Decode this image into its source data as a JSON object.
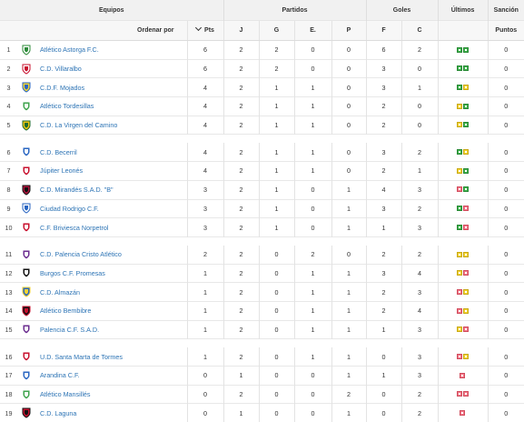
{
  "header": {
    "equipos": "Equipos",
    "partidos": "Partidos",
    "goles": "Goles",
    "ultimos": "Últimos",
    "sancion": "Sanción",
    "ordenar_por": "Ordenar por",
    "pts": "Pts",
    "j": "J",
    "g": "G",
    "e": "E.",
    "p": "P",
    "f": "F",
    "c": "C",
    "puntos": "Puntos"
  },
  "rows": [
    {
      "pos": "1",
      "team": "Atlético Astorga F.C.",
      "pts": "6",
      "j": "2",
      "g": "2",
      "e": "0",
      "p": "0",
      "f": "6",
      "c": "2",
      "form": [
        "W",
        "W"
      ],
      "sancion": "0",
      "logo": "crest-astorga-icon",
      "logo_colors": [
        "#ffffff",
        "#2e8b3a"
      ]
    },
    {
      "pos": "2",
      "team": "C.D. Villaralbo",
      "pts": "6",
      "j": "2",
      "g": "2",
      "e": "0",
      "p": "0",
      "f": "3",
      "c": "0",
      "form": [
        "W",
        "W"
      ],
      "sancion": "0",
      "logo": "crest-villaralbo-icon",
      "logo_colors": [
        "#ffffff",
        "#c8102e"
      ]
    },
    {
      "pos": "3",
      "team": "C.D.F. Mojados",
      "pts": "4",
      "j": "2",
      "g": "1",
      "e": "1",
      "p": "0",
      "f": "3",
      "c": "1",
      "form": [
        "W",
        "D"
      ],
      "sancion": "0",
      "logo": "crest-mojados-icon",
      "logo_colors": [
        "#f4d431",
        "#2a66c2"
      ]
    },
    {
      "pos": "4",
      "team": "Atlético Tordesillas",
      "pts": "4",
      "j": "2",
      "g": "1",
      "e": "1",
      "p": "0",
      "f": "2",
      "c": "0",
      "form": [
        "D",
        "W"
      ],
      "sancion": "0",
      "logo": "crest-tordesillas-icon",
      "logo_colors": [
        "#3fa34d",
        "#ffffff"
      ]
    },
    {
      "pos": "5",
      "team": "C.D. La Virgen del Camino",
      "pts": "4",
      "j": "2",
      "g": "1",
      "e": "1",
      "p": "0",
      "f": "2",
      "c": "0",
      "form": [
        "D",
        "W"
      ],
      "sancion": "0",
      "logo": "crest-virgen-camino-icon",
      "logo_colors": [
        "#f1c40f",
        "#1e6b2e"
      ]
    },
    {
      "pos": "6",
      "team": "C.D. Becerril",
      "pts": "4",
      "j": "2",
      "g": "1",
      "e": "1",
      "p": "0",
      "f": "3",
      "c": "2",
      "form": [
        "W",
        "D"
      ],
      "sancion": "0",
      "logo": "crest-becerril-icon",
      "logo_colors": [
        "#2a66c2",
        "#ffffff"
      ]
    },
    {
      "pos": "7",
      "team": "Júpiter Leonés",
      "pts": "4",
      "j": "2",
      "g": "1",
      "e": "1",
      "p": "0",
      "f": "2",
      "c": "1",
      "form": [
        "D",
        "W"
      ],
      "sancion": "0",
      "logo": "crest-jupiter-icon",
      "logo_colors": [
        "#c8102e",
        "#ffffff"
      ]
    },
    {
      "pos": "8",
      "team": "C.D. Mirandés S.A.D. \"B\"",
      "pts": "3",
      "j": "2",
      "g": "1",
      "e": "0",
      "p": "1",
      "f": "4",
      "c": "3",
      "form": [
        "L",
        "W"
      ],
      "sancion": "0",
      "logo": "crest-mirandes-icon",
      "logo_colors": [
        "#b0123b",
        "#111111"
      ]
    },
    {
      "pos": "9",
      "team": "Ciudad Rodrigo C.F.",
      "pts": "3",
      "j": "2",
      "g": "1",
      "e": "0",
      "p": "1",
      "f": "3",
      "c": "2",
      "form": [
        "W",
        "L"
      ],
      "sancion": "0",
      "logo": "crest-ciudad-rodrigo-icon",
      "logo_colors": [
        "#ffffff",
        "#2a66c2"
      ]
    },
    {
      "pos": "10",
      "team": "C.F. Briviesca Norpetrol",
      "pts": "3",
      "j": "2",
      "g": "1",
      "e": "0",
      "p": "1",
      "f": "1",
      "c": "3",
      "form": [
        "W",
        "L"
      ],
      "sancion": "0",
      "logo": "crest-briviesca-icon",
      "logo_colors": [
        "#c8102e",
        "#ffffff"
      ]
    },
    {
      "pos": "11",
      "team": "C.D. Palencia Cristo Atlético",
      "pts": "2",
      "j": "2",
      "g": "0",
      "e": "2",
      "p": "0",
      "f": "2",
      "c": "2",
      "form": [
        "D",
        "D"
      ],
      "sancion": "0",
      "logo": "crest-palencia-cristo-icon",
      "logo_colors": [
        "#6b2d8f",
        "#ffffff"
      ]
    },
    {
      "pos": "12",
      "team": "Burgos C.F. Promesas",
      "pts": "1",
      "j": "2",
      "g": "0",
      "e": "1",
      "p": "1",
      "f": "3",
      "c": "4",
      "form": [
        "D",
        "L"
      ],
      "sancion": "0",
      "logo": "crest-burgos-icon",
      "logo_colors": [
        "#111111",
        "#ffffff"
      ]
    },
    {
      "pos": "13",
      "team": "C.D. Almazán",
      "pts": "1",
      "j": "2",
      "g": "0",
      "e": "1",
      "p": "1",
      "f": "2",
      "c": "3",
      "form": [
        "L",
        "D"
      ],
      "sancion": "0",
      "logo": "crest-almazan-icon",
      "logo_colors": [
        "#2a66c2",
        "#f4d431"
      ]
    },
    {
      "pos": "14",
      "team": "Atlético Bembibre",
      "pts": "1",
      "j": "2",
      "g": "0",
      "e": "1",
      "p": "1",
      "f": "2",
      "c": "4",
      "form": [
        "L",
        "D"
      ],
      "sancion": "0",
      "logo": "crest-bembibre-icon",
      "logo_colors": [
        "#111111",
        "#c8102e"
      ]
    },
    {
      "pos": "15",
      "team": "Palencia C.F. S.A.D.",
      "pts": "1",
      "j": "2",
      "g": "0",
      "e": "1",
      "p": "1",
      "f": "1",
      "c": "3",
      "form": [
        "D",
        "L"
      ],
      "sancion": "0",
      "logo": "crest-palencia-cf-icon",
      "logo_colors": [
        "#6b2d8f",
        "#ffffff"
      ]
    },
    {
      "pos": "16",
      "team": "U.D. Santa Marta de Tormes",
      "pts": "1",
      "j": "2",
      "g": "0",
      "e": "1",
      "p": "1",
      "f": "0",
      "c": "3",
      "form": [
        "L",
        "D"
      ],
      "sancion": "0",
      "logo": "crest-santa-marta-icon",
      "logo_colors": [
        "#c8102e",
        "#ffffff"
      ]
    },
    {
      "pos": "17",
      "team": "Arandina C.F.",
      "pts": "0",
      "j": "1",
      "g": "0",
      "e": "0",
      "p": "1",
      "f": "1",
      "c": "3",
      "form": [
        "L"
      ],
      "sancion": "0",
      "logo": "crest-arandina-icon",
      "logo_colors": [
        "#2a66c2",
        "#ffffff"
      ]
    },
    {
      "pos": "18",
      "team": "Atlético Mansillés",
      "pts": "0",
      "j": "2",
      "g": "0",
      "e": "0",
      "p": "2",
      "f": "0",
      "c": "2",
      "form": [
        "L",
        "L"
      ],
      "sancion": "0",
      "logo": "crest-mansilles-icon",
      "logo_colors": [
        "#3fa34d",
        "#ffffff"
      ]
    },
    {
      "pos": "19",
      "team": "C.D. Laguna",
      "pts": "0",
      "j": "1",
      "g": "0",
      "e": "0",
      "p": "1",
      "f": "0",
      "c": "2",
      "form": [
        "L"
      ],
      "sancion": "0",
      "logo": "crest-laguna-icon",
      "logo_colors": [
        "#c8102e",
        "#111111"
      ]
    }
  ]
}
